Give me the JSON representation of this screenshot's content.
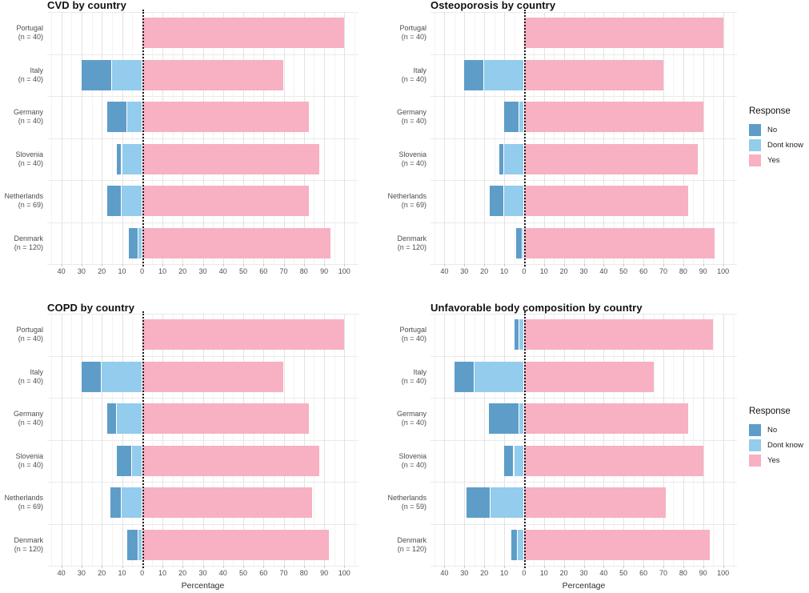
{
  "figure": {
    "background": "#ffffff",
    "x_axis": {
      "min": -47,
      "max": 107,
      "tick_values": [
        -40,
        -30,
        -20,
        -10,
        0,
        10,
        20,
        30,
        40,
        50,
        60,
        70,
        80,
        90,
        100
      ],
      "tick_labels": [
        "40",
        "30",
        "20",
        "10",
        "0",
        "10",
        "20",
        "30",
        "40",
        "50",
        "60",
        "70",
        "80",
        "90",
        "100"
      ],
      "minor_step": 5,
      "grid": true
    },
    "legend": {
      "title": "Response",
      "position": "right",
      "items": [
        {
          "label": "No",
          "color": "#5E9DC8"
        },
        {
          "label": "Dont know",
          "color": "#93CCEC"
        },
        {
          "label": "Yes",
          "color": "#F7B1C2"
        }
      ]
    },
    "zero_line": {
      "style": "dotted",
      "color": "#1a1a1a",
      "x": 0
    }
  },
  "chart_data": [
    {
      "type": "bar",
      "variant": "diverging-stacked-horizontal",
      "title": "CVD by country",
      "xlabel": "",
      "ylabel": "",
      "xlim": [
        -47,
        107
      ],
      "categories": [
        {
          "country": "Portugal",
          "n_label": "(n = 40)"
        },
        {
          "country": "Italy",
          "n_label": "(n = 40)"
        },
        {
          "country": "Germany",
          "n_label": "(n = 40)"
        },
        {
          "country": "Slovenia",
          "n_label": "(n = 40)"
        },
        {
          "country": "Netherlands",
          "n_label": "(n = 69)"
        },
        {
          "country": "Denmark",
          "n_label": "(n = 120)"
        }
      ],
      "series": [
        {
          "name": "No",
          "values": [
            0,
            15,
            10,
            2.5,
            7.2,
            5
          ]
        },
        {
          "name": "Dont know",
          "values": [
            0,
            15,
            7.5,
            10,
            10.1,
            1.7
          ]
        },
        {
          "name": "Yes",
          "values": [
            100,
            70,
            82.5,
            87.5,
            82.6,
            93.3
          ]
        }
      ]
    },
    {
      "type": "bar",
      "variant": "diverging-stacked-horizontal",
      "title": "Osteoporosis by country",
      "xlabel": "",
      "ylabel": "",
      "xlim": [
        -47,
        107
      ],
      "categories": [
        {
          "country": "Portugal",
          "n_label": "(n = 40)"
        },
        {
          "country": "Italy",
          "n_label": "(n = 40)"
        },
        {
          "country": "Germany",
          "n_label": "(n = 40)"
        },
        {
          "country": "Slovenia",
          "n_label": "(n = 40)"
        },
        {
          "country": "Netherlands",
          "n_label": "(n = 69)"
        },
        {
          "country": "Denmark",
          "n_label": "(n = 120)"
        }
      ],
      "series": [
        {
          "name": "No",
          "values": [
            0,
            10,
            7.5,
            2.5,
            7.2,
            3.3
          ]
        },
        {
          "name": "Dont know",
          "values": [
            0,
            20,
            2.5,
            10,
            10.1,
            0.8
          ]
        },
        {
          "name": "Yes",
          "values": [
            100,
            70,
            90,
            87.5,
            82.6,
            95.8
          ]
        }
      ]
    },
    {
      "type": "bar",
      "variant": "diverging-stacked-horizontal",
      "title": "COPD by country",
      "xlabel": "Percentage",
      "ylabel": "",
      "xlim": [
        -47,
        107
      ],
      "categories": [
        {
          "country": "Portugal",
          "n_label": "(n = 40)"
        },
        {
          "country": "Italy",
          "n_label": "(n = 40)"
        },
        {
          "country": "Germany",
          "n_label": "(n = 40)"
        },
        {
          "country": "Slovenia",
          "n_label": "(n = 40)"
        },
        {
          "country": "Netherlands",
          "n_label": "(n = 69)"
        },
        {
          "country": "Denmark",
          "n_label": "(n = 120)"
        }
      ],
      "series": [
        {
          "name": "No",
          "values": [
            0,
            10,
            5,
            7.5,
            5.8,
            5.8
          ]
        },
        {
          "name": "Dont know",
          "values": [
            0,
            20,
            12.5,
            5,
            10.1,
            1.7
          ]
        },
        {
          "name": "Yes",
          "values": [
            100,
            70,
            82.5,
            87.5,
            84.1,
            92.5
          ]
        }
      ]
    },
    {
      "type": "bar",
      "variant": "diverging-stacked-horizontal",
      "title": "Unfavorable body composition by country",
      "xlabel": "Percentage",
      "ylabel": "",
      "xlim": [
        -47,
        107
      ],
      "categories": [
        {
          "country": "Portugal",
          "n_label": "(n = 40)"
        },
        {
          "country": "Italy",
          "n_label": "(n = 40)"
        },
        {
          "country": "Germany",
          "n_label": "(n = 40)"
        },
        {
          "country": "Slovenia",
          "n_label": "(n = 40)"
        },
        {
          "country": "Netherlands",
          "n_label": "(n = 59)"
        },
        {
          "country": "Denmark",
          "n_label": "(n = 120)"
        }
      ],
      "series": [
        {
          "name": "No",
          "values": [
            2.5,
            10,
            15,
            5,
            11.9,
            3.3
          ]
        },
        {
          "name": "Dont know",
          "values": [
            2.5,
            25,
            2.5,
            5,
            16.9,
            3.3
          ]
        },
        {
          "name": "Yes",
          "values": [
            95,
            65,
            82.5,
            90,
            71.2,
            93.3
          ]
        }
      ]
    }
  ]
}
